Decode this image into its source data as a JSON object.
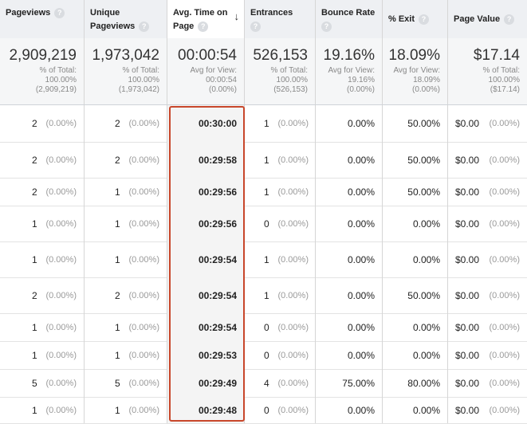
{
  "headers": [
    {
      "label": "Pageviews",
      "help": "?"
    },
    {
      "label": "Unique Pageviews",
      "help": "?"
    },
    {
      "label": "Avg. Time on Page",
      "help": "?",
      "sort_arrow": "↓"
    },
    {
      "label": "Entrances",
      "help": "?"
    },
    {
      "label": "Bounce Rate",
      "help": "?"
    },
    {
      "label": "% Exit",
      "help": "?"
    },
    {
      "label": "Page Value",
      "help": "?"
    }
  ],
  "totals": [
    {
      "value": "2,909,219",
      "line1": "% of Total:",
      "line2": "100.00%",
      "line3": "(2,909,219)"
    },
    {
      "value": "1,973,042",
      "line1": "% of Total:",
      "line2": "100.00%",
      "line3": "(1,973,042)"
    },
    {
      "value": "00:00:54",
      "line1": "Avg for View:",
      "line2": "00:00:54",
      "line3": "(0.00%)"
    },
    {
      "value": "526,153",
      "line1": "% of Total:",
      "line2": "100.00%",
      "line3": "(526,153)"
    },
    {
      "value": "19.16%",
      "line1": "Avg for View:",
      "line2": "19.16%",
      "line3": "(0.00%)"
    },
    {
      "value": "18.09%",
      "line1": "Avg for View:",
      "line2": "18.09%",
      "line3": "(0.00%)"
    },
    {
      "value": "$17.14",
      "line1": "% of Total:",
      "line2": "100.00%",
      "line3": "($17.14)"
    }
  ],
  "rows": [
    {
      "pageviews": "2",
      "pageviews_pct": "(0.00%)",
      "unique": "2",
      "unique_pct": "(0.00%)",
      "avg_time": "00:30:00",
      "entrances": "1",
      "entrances_pct": "(0.00%)",
      "bounce": "0.00%",
      "exit": "50.00%",
      "value": "$0.00",
      "value_pct": "(0.00%)"
    },
    {
      "pageviews": "2",
      "pageviews_pct": "(0.00%)",
      "unique": "2",
      "unique_pct": "(0.00%)",
      "avg_time": "00:29:58",
      "entrances": "1",
      "entrances_pct": "(0.00%)",
      "bounce": "0.00%",
      "exit": "50.00%",
      "value": "$0.00",
      "value_pct": "(0.00%)"
    },
    {
      "pageviews": "2",
      "pageviews_pct": "(0.00%)",
      "unique": "1",
      "unique_pct": "(0.00%)",
      "avg_time": "00:29:56",
      "entrances": "1",
      "entrances_pct": "(0.00%)",
      "bounce": "0.00%",
      "exit": "50.00%",
      "value": "$0.00",
      "value_pct": "(0.00%)"
    },
    {
      "pageviews": "1",
      "pageviews_pct": "(0.00%)",
      "unique": "1",
      "unique_pct": "(0.00%)",
      "avg_time": "00:29:56",
      "entrances": "0",
      "entrances_pct": "(0.00%)",
      "bounce": "0.00%",
      "exit": "0.00%",
      "value": "$0.00",
      "value_pct": "(0.00%)"
    },
    {
      "pageviews": "1",
      "pageviews_pct": "(0.00%)",
      "unique": "1",
      "unique_pct": "(0.00%)",
      "avg_time": "00:29:54",
      "entrances": "1",
      "entrances_pct": "(0.00%)",
      "bounce": "0.00%",
      "exit": "0.00%",
      "value": "$0.00",
      "value_pct": "(0.00%)"
    },
    {
      "pageviews": "2",
      "pageviews_pct": "(0.00%)",
      "unique": "2",
      "unique_pct": "(0.00%)",
      "avg_time": "00:29:54",
      "entrances": "1",
      "entrances_pct": "(0.00%)",
      "bounce": "0.00%",
      "exit": "50.00%",
      "value": "$0.00",
      "value_pct": "(0.00%)"
    },
    {
      "pageviews": "1",
      "pageviews_pct": "(0.00%)",
      "unique": "1",
      "unique_pct": "(0.00%)",
      "avg_time": "00:29:54",
      "entrances": "0",
      "entrances_pct": "(0.00%)",
      "bounce": "0.00%",
      "exit": "0.00%",
      "value": "$0.00",
      "value_pct": "(0.00%)"
    },
    {
      "pageviews": "1",
      "pageviews_pct": "(0.00%)",
      "unique": "1",
      "unique_pct": "(0.00%)",
      "avg_time": "00:29:53",
      "entrances": "0",
      "entrances_pct": "(0.00%)",
      "bounce": "0.00%",
      "exit": "0.00%",
      "value": "$0.00",
      "value_pct": "(0.00%)"
    },
    {
      "pageviews": "5",
      "pageviews_pct": "(0.00%)",
      "unique": "5",
      "unique_pct": "(0.00%)",
      "avg_time": "00:29:49",
      "entrances": "4",
      "entrances_pct": "(0.00%)",
      "bounce": "75.00%",
      "exit": "80.00%",
      "value": "$0.00",
      "value_pct": "(0.00%)"
    },
    {
      "pageviews": "1",
      "pageviews_pct": "(0.00%)",
      "unique": "1",
      "unique_pct": "(0.00%)",
      "avg_time": "00:29:48",
      "entrances": "0",
      "entrances_pct": "(0.00%)",
      "bounce": "0.00%",
      "exit": "0.00%",
      "value": "$0.00",
      "value_pct": "(0.00%)"
    }
  ],
  "colors": {
    "highlight_border": "#c8472b",
    "header_bg": "#eef0f3",
    "totals_bg": "#f5f6f7"
  }
}
